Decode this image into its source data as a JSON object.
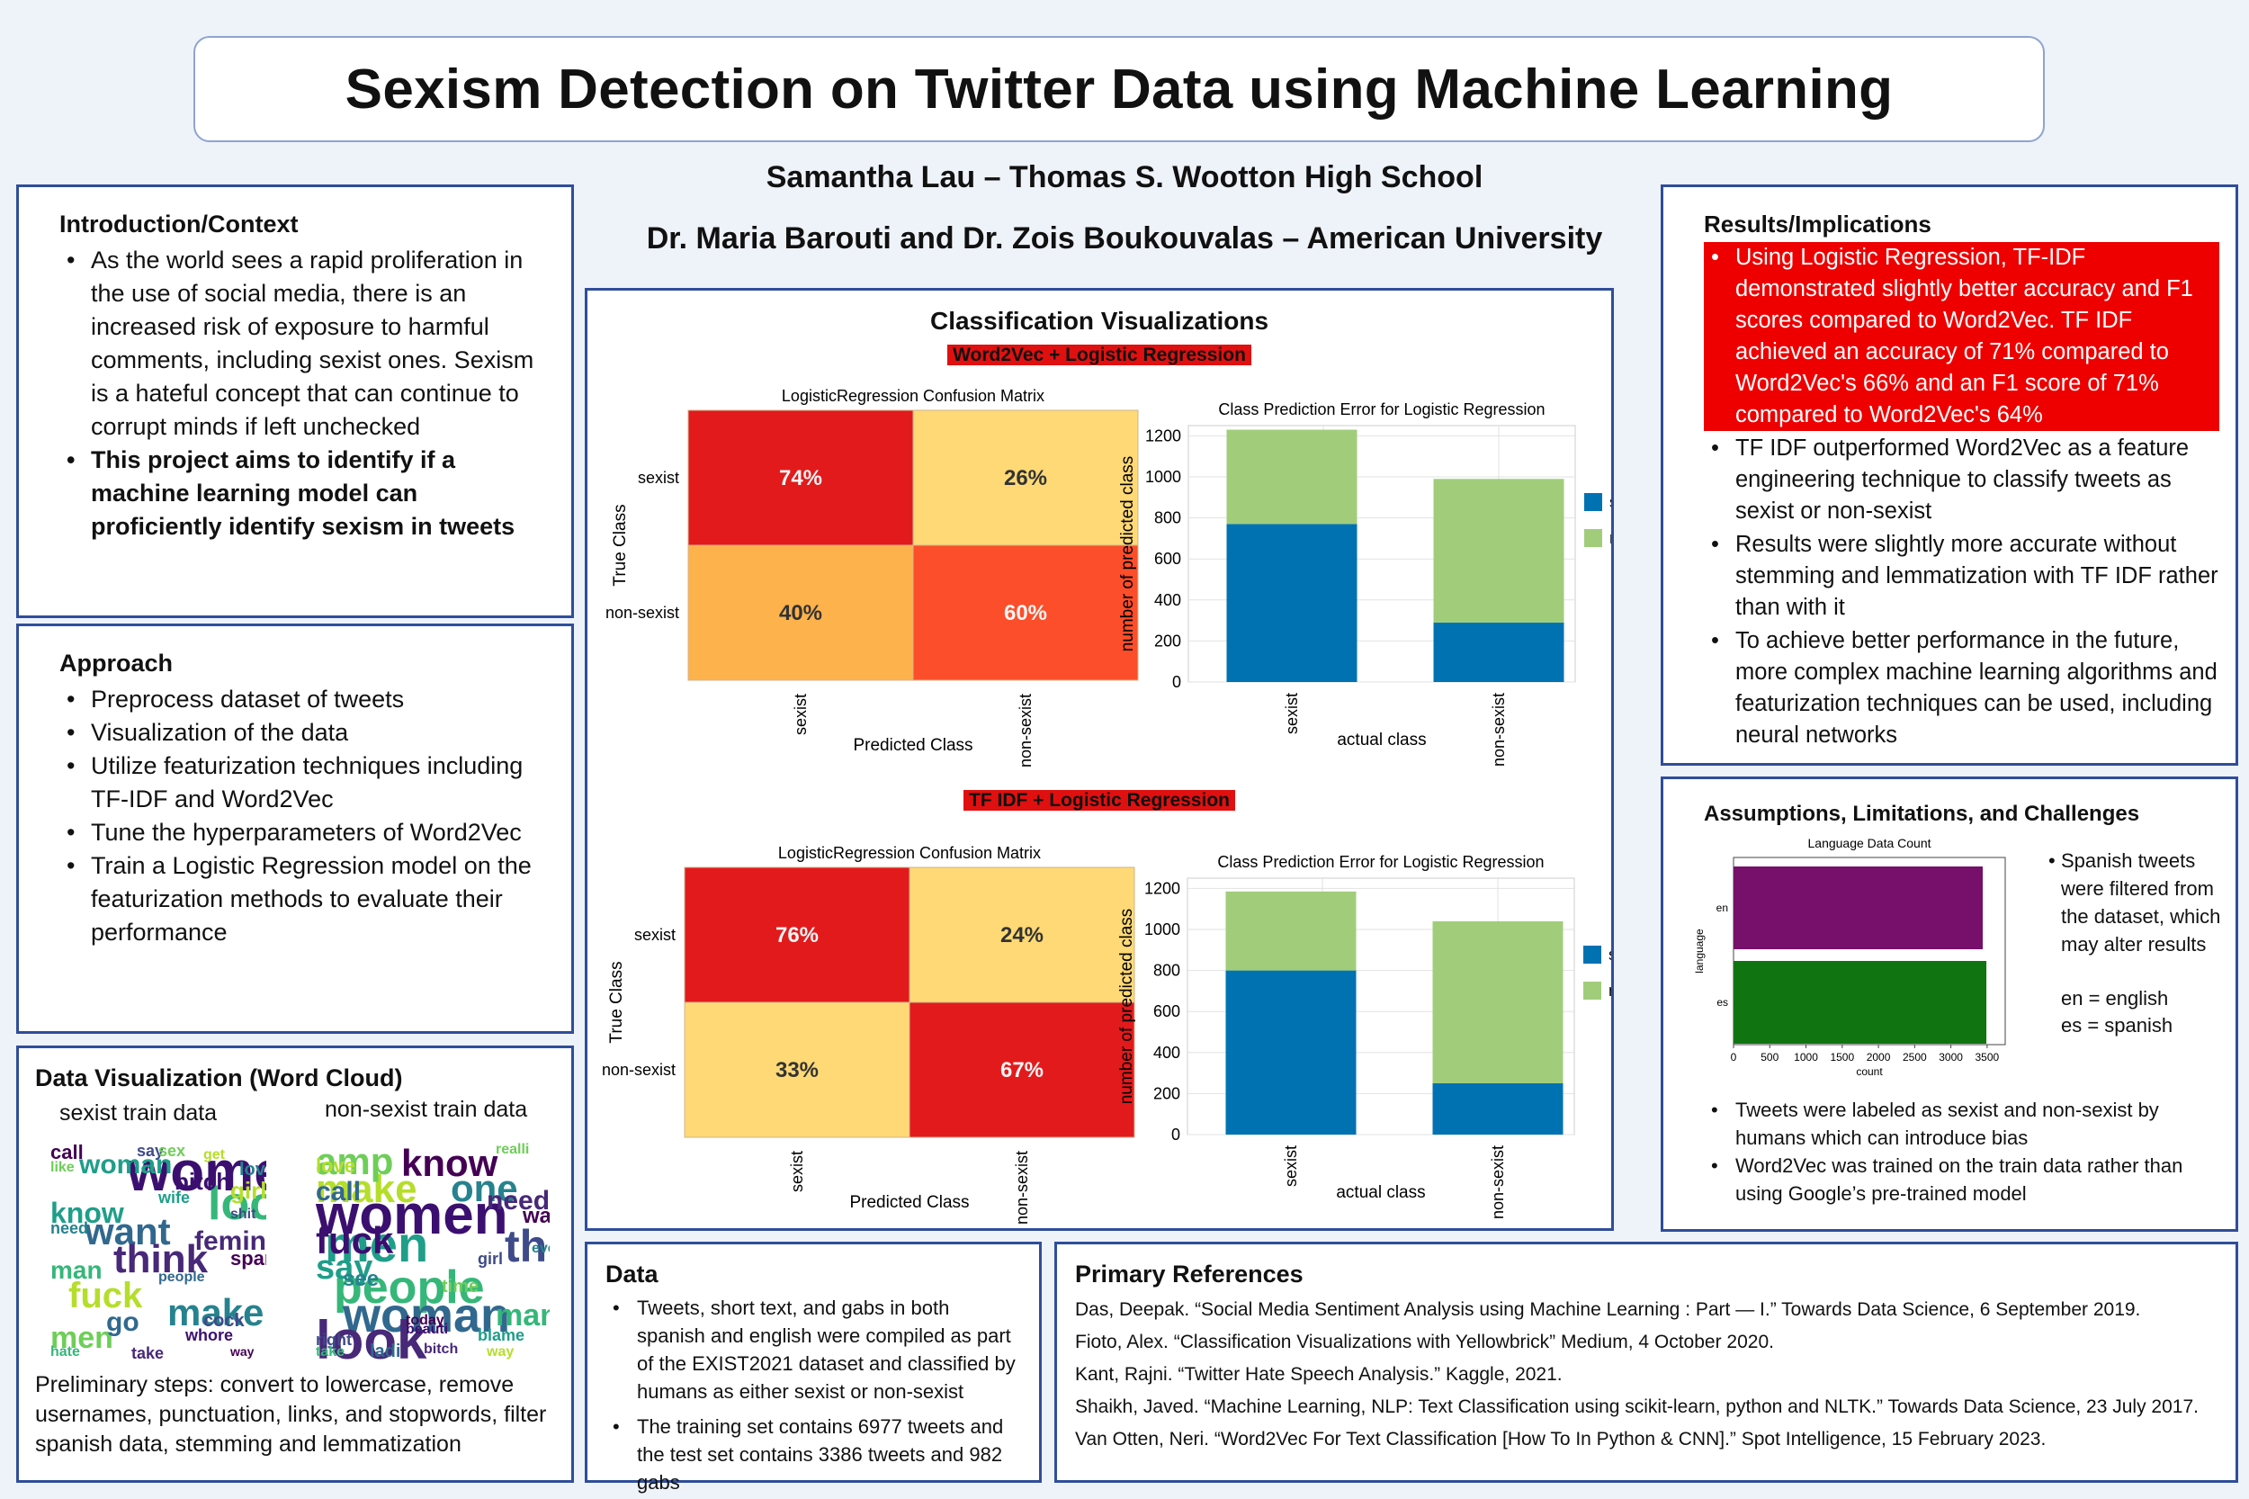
{
  "title": "Sexism Detection on Twitter Data using Machine Learning",
  "authors_line1": "Samantha Lau – Thomas S. Wootton High School",
  "authors_line2": "Dr. Maria Barouti and Dr. Zois Boukouvalas – American University",
  "intro": {
    "heading": "Introduction/Context",
    "bullet1": "As the world  sees a rapid proliferation in the use of social media, there is an increased risk of exposure to harmful comments, including sexist ones. Sexism is a hateful concept that can continue to corrupt minds if left unchecked",
    "bullet2": "This project aims to identify if a machine learning model can proficiently identify sexism in tweets"
  },
  "approach": {
    "heading": "Approach",
    "items": [
      "Preprocess dataset of tweets",
      "Visualization of the data",
      "Utilize featurization techniques including TF-IDF and Word2Vec",
      "Tune the hyperparameters of Word2Vec",
      "Train a Logistic Regression model on the featurization methods to evaluate their performance"
    ]
  },
  "wordcloud": {
    "heading": "Data Visualization (Word Cloud)",
    "label_left": "sexist train data",
    "label_right": "non-sexist train data",
    "caption": "Preliminary steps: convert to lowercase, remove usernames, punctuation, links, and stopwords, filter spanish data, stemming and lemmatization",
    "left_words": [
      "women",
      "woman",
      "look",
      "want",
      "think",
      "fuck",
      "make",
      "men",
      "call",
      "say",
      "bitch",
      "know",
      "man",
      "go",
      "femin",
      "girl",
      "love",
      "sex",
      "spank",
      "cock",
      "whore",
      "wife",
      "hate",
      "people",
      "take",
      "get",
      "need",
      "like",
      "way",
      "shit"
    ],
    "right_words": [
      "women",
      "men",
      "people",
      "woman",
      "look",
      "make",
      "one",
      "amp",
      "know",
      "think",
      "fuck",
      "say",
      "man",
      "call",
      "need",
      "love",
      "see",
      "time",
      "want",
      "right",
      "beauti",
      "blame",
      "take",
      "ladi",
      "bitch",
      "way",
      "even",
      "realli",
      "today",
      "girl"
    ]
  },
  "viz": {
    "heading": "Classification Visualizations",
    "sub1": "Word2Vec + Logistic Regression",
    "sub2": "TF IDF + Logistic Regression",
    "cm_title": "LogisticRegression Confusion Matrix",
    "cm_ylabel": "True Class",
    "cm_xlabel": "Predicted Class",
    "bar_title": "Class Prediction Error for Logistic Regression",
    "bar_ylabel": "number of predicted class",
    "bar_xlabel": "actual class",
    "class_a": "sexist",
    "class_b": "non-sexist"
  },
  "chart_data": [
    {
      "type": "heatmap",
      "title": "LogisticRegression Confusion Matrix",
      "ylabel": "True Class",
      "xlabel": "Predicted Class",
      "rows": [
        "sexist",
        "non-sexist"
      ],
      "cols": [
        "sexist",
        "non-sexist"
      ],
      "values": [
        [
          "74%",
          "26%"
        ],
        [
          "40%",
          "60%"
        ]
      ],
      "colors": [
        [
          "#e31a1c",
          "#fed976"
        ],
        [
          "#feb24c",
          "#fc4e2a"
        ]
      ]
    },
    {
      "type": "bar",
      "title": "Class Prediction Error for Logistic Regression",
      "categories": [
        "sexist",
        "non-sexist"
      ],
      "xlabel": "actual class",
      "ylabel": "number of predicted class",
      "ylim": [
        0,
        1250
      ],
      "yticks": [
        0,
        200,
        400,
        600,
        800,
        1000,
        1200
      ],
      "series": [
        {
          "name": "sexist",
          "color": "#0072b2",
          "values": [
            770,
            290
          ]
        },
        {
          "name": "non-sexist",
          "color": "#a1cd7b",
          "values": [
            460,
            700
          ]
        }
      ]
    },
    {
      "type": "heatmap",
      "title": "LogisticRegression Confusion Matrix",
      "ylabel": "True Class",
      "xlabel": "Predicted Class",
      "rows": [
        "sexist",
        "non-sexist"
      ],
      "cols": [
        "sexist",
        "non-sexist"
      ],
      "values": [
        [
          "76%",
          "24%"
        ],
        [
          "33%",
          "67%"
        ]
      ],
      "colors": [
        [
          "#e31a1c",
          "#fed976"
        ],
        [
          "#fed976",
          "#e31a1c"
        ]
      ]
    },
    {
      "type": "bar",
      "title": "Class Prediction Error for Logistic Regression",
      "categories": [
        "sexist",
        "non-sexist"
      ],
      "xlabel": "actual class",
      "ylabel": "number of predicted class",
      "ylim": [
        0,
        1250
      ],
      "yticks": [
        0,
        200,
        400,
        600,
        800,
        1000,
        1200
      ],
      "series": [
        {
          "name": "sexist",
          "color": "#0072b2",
          "values": [
            800,
            250
          ]
        },
        {
          "name": "non-sexist",
          "color": "#a1cd7b",
          "values": [
            385,
            790
          ]
        }
      ]
    },
    {
      "type": "bar",
      "orientation": "horizontal",
      "title": "Language Data Count",
      "categories": [
        "en",
        "es"
      ],
      "ylabel": "language",
      "xlabel": "count",
      "xlim": [
        0,
        3750
      ],
      "xticks": [
        0,
        500,
        1000,
        1500,
        2000,
        2500,
        3000,
        3500
      ],
      "values": [
        3440,
        3490
      ],
      "colors": [
        "#76106a",
        "#107510"
      ]
    }
  ],
  "data_sec": {
    "heading": "Data",
    "items": [
      "Tweets, short text, and gabs in both spanish and english were compiled as part of the EXIST2021 dataset and classified by humans as either sexist or non-sexist",
      "The training set contains 6977 tweets and the test set contains 3386 tweets and 982 gabs"
    ]
  },
  "refs": {
    "heading": "Primary References",
    "items": [
      "Das, Deepak. “Social Media Sentiment Analysis using Machine Learning : Part — I.” Towards Data Science, 6 September 2019.",
      "Fioto, Alex. “Classification Visualizations with Yellowbrick” Medium, 4 October 2020.",
      "Kant, Rajni. “Twitter Hate Speech Analysis.” Kaggle, 2021.",
      "Shaikh, Javed. “Machine Learning, NLP: Text Classification using scikit-learn, python and NLTK.” Towards Data Science, 23 July 2017.",
      "Van Otten, Neri. “Word2Vec For Text Classification [How To In Python & CNN].” Spot Intelligence, 15 February 2023."
    ]
  },
  "results": {
    "heading": "Results/Implications",
    "highlight": "Using Logistic Regression, TF-IDF demonstrated slightly better accuracy and F1 scores compared to Word2Vec. TF IDF achieved an accuracy of 71% compared to Word2Vec's 66% and an F1 score of 71% compared to Word2Vec's 64%",
    "items": [
      "TF IDF outperformed Word2Vec as a feature engineering technique to classify tweets as sexist or non-sexist",
      "Results were slightly more accurate without stemming and lemmatization with TF IDF rather than with it",
      "To achieve better performance in the future, more complex machine learning algorithms and featurization techniques can be used, including neural networks"
    ]
  },
  "assumptions": {
    "heading": "Assumptions, Limitations, and Challenges",
    "side_note": "Spanish tweets were filtered from the dataset, which may alter results",
    "legend_en": "en = english",
    "legend_es": "es = spanish",
    "items": [
      "Tweets were labeled as sexist and non-sexist by humans which can introduce bias",
      "Word2Vec was trained on the train data rather than using Google’s pre-trained model"
    ]
  }
}
